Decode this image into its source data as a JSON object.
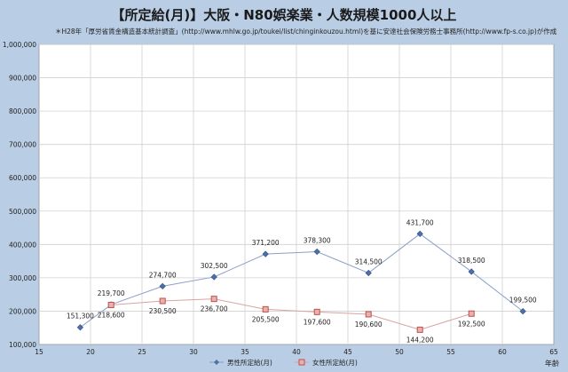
{
  "title": "【所定給(月)】大阪・N80娯楽業・人数規模1000人以上",
  "note": "＊H28年「厚労省賃金構造基本統計調査」(http://www.mhlw.go.jp/toukei/list/chinginkouzou.html)を基に安達社会保険労務士事務所(http://www.fp-s.co.jp)が作成",
  "chart_data": {
    "type": "scatter",
    "xlabel": "年齢",
    "ylabel": "",
    "xlim": [
      15,
      65
    ],
    "ylim": [
      100000,
      1000000
    ],
    "xticks": [
      15,
      20,
      25,
      30,
      35,
      40,
      45,
      50,
      55,
      60,
      65
    ],
    "yticks": [
      "100,000",
      "200,000",
      "300,000",
      "400,000",
      "500,000",
      "600,000",
      "700,000",
      "800,000",
      "900,000",
      "1,000,000"
    ],
    "yticks_values": [
      100000,
      200000,
      300000,
      400000,
      500000,
      600000,
      700000,
      800000,
      900000,
      1000000
    ],
    "grid": true,
    "legend": "bottom",
    "series": [
      {
        "name": "男性所定給(月)",
        "color": "#4f6fa8",
        "marker": "diamond",
        "x": [
          19,
          22,
          27,
          32,
          37,
          42,
          47,
          52,
          57,
          62
        ],
        "y": [
          151300,
          219700,
          274700,
          302500,
          371200,
          378300,
          314500,
          431700,
          318500,
          199500
        ],
        "labels": [
          "151,300",
          "219,700",
          "274,700",
          "302,500",
          "371,200",
          "378,300",
          "314,500",
          "431,700",
          "318,500",
          "199,500"
        ]
      },
      {
        "name": "女性所定給(月)",
        "color": "#c0504d",
        "marker": "square",
        "x": [
          22,
          27,
          32,
          37,
          42,
          47,
          52,
          57
        ],
        "y": [
          218600,
          230500,
          236700,
          205500,
          197600,
          190600,
          144200,
          192500
        ],
        "labels": [
          "218,600",
          "230,500",
          "236,700",
          "205,500",
          "197,600",
          "190,600",
          "144,200",
          "192,500"
        ]
      }
    ]
  }
}
